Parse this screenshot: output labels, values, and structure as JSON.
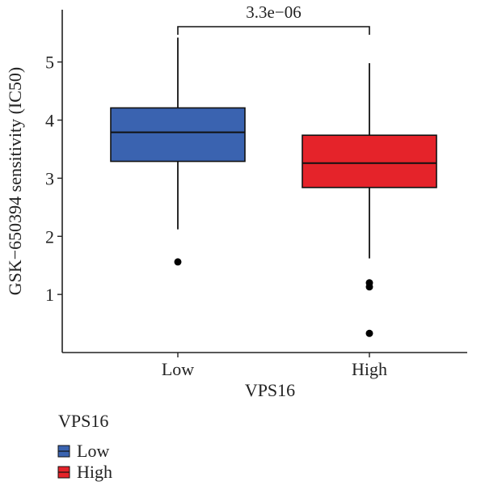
{
  "chart_data": {
    "type": "boxplot",
    "title": "",
    "xlabel": "VPS16",
    "ylabel": "GSK−650394 sensitivity (IC50)",
    "ylim": [
      0,
      5.9
    ],
    "yticks": [
      1,
      2,
      3,
      4,
      5
    ],
    "grid": false,
    "legend_placement": "bottom-left",
    "legend_title": "VPS16",
    "significance": {
      "label": "3.3e−06",
      "groups": [
        "Low",
        "High"
      ]
    },
    "series": [
      {
        "name": "Low",
        "color": "#3a63b0",
        "whisker_low": 2.12,
        "q1": 3.29,
        "median": 3.79,
        "q3": 4.21,
        "whisker_high": 5.42,
        "outliers": [
          1.56
        ]
      },
      {
        "name": "High",
        "color": "#e5232a",
        "whisker_low": 1.62,
        "q1": 2.84,
        "median": 3.26,
        "q3": 3.74,
        "whisker_high": 4.98,
        "outliers": [
          1.2,
          1.13,
          0.33
        ]
      }
    ]
  }
}
